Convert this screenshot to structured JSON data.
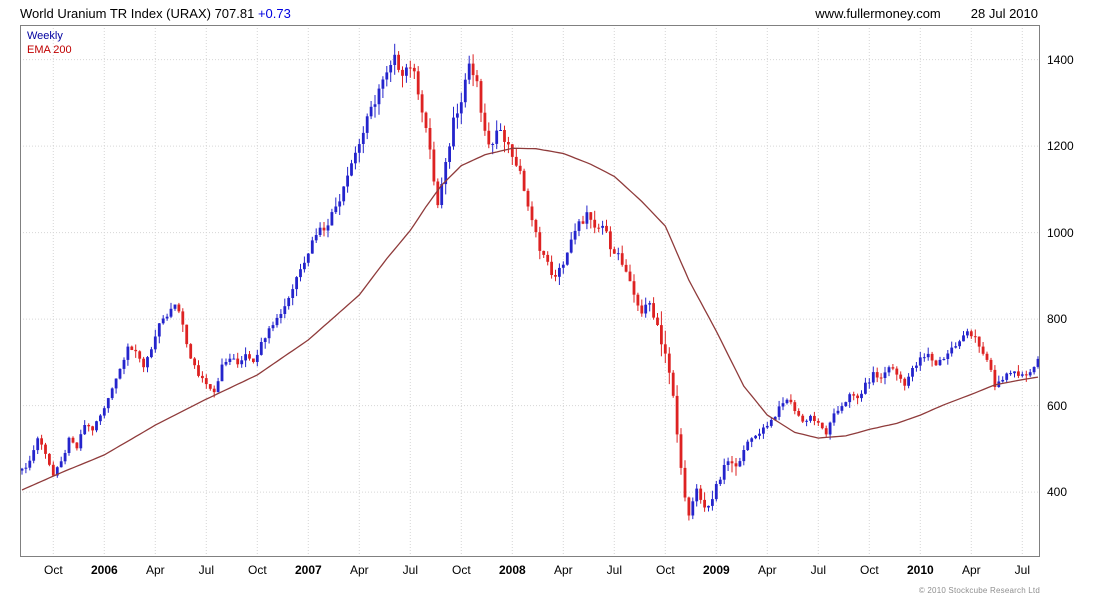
{
  "header": {
    "title": "World Uranium TR Index (URAX) 707.81",
    "change": "+0.73",
    "site": "www.fullermoney.com",
    "date": "28 Jul 2010"
  },
  "legend": {
    "weekly": "Weekly",
    "ema": "EMA 200"
  },
  "footer": {
    "copyright": "© 2010 Stockcube Research Ltd"
  },
  "colors": {
    "candle_up": "#2424cc",
    "candle_down": "#dd2222",
    "ema_line": "#8f3b3b",
    "legend_weekly": "#0000a0",
    "legend_ema": "#c00000",
    "change_positive": "#0000e0",
    "grid": "#d6d6d6",
    "border": "#808080"
  },
  "chart_data": {
    "type": "candlestick+line",
    "title": "World Uranium TR Index (URAX)",
    "frequency": "Weekly",
    "overlay": "EMA 200",
    "last_price": 707.81,
    "change": 0.73,
    "grid": true,
    "legend_position": "top-left",
    "xlabel": "",
    "ylabel": "",
    "ylim": [
      250,
      1480
    ],
    "y_ticks": [
      400,
      600,
      800,
      1000,
      1200,
      1400
    ],
    "weeks_total": 260,
    "x_ticks": [
      {
        "week": 8,
        "label": "Oct",
        "bold": false
      },
      {
        "week": 21,
        "label": "2006",
        "bold": true
      },
      {
        "week": 34,
        "label": "Apr",
        "bold": false
      },
      {
        "week": 47,
        "label": "Jul",
        "bold": false
      },
      {
        "week": 60,
        "label": "Oct",
        "bold": false
      },
      {
        "week": 73,
        "label": "2007",
        "bold": true
      },
      {
        "week": 86,
        "label": "Apr",
        "bold": false
      },
      {
        "week": 99,
        "label": "Jul",
        "bold": false
      },
      {
        "week": 112,
        "label": "Oct",
        "bold": false
      },
      {
        "week": 125,
        "label": "2008",
        "bold": true
      },
      {
        "week": 138,
        "label": "Apr",
        "bold": false
      },
      {
        "week": 151,
        "label": "Jul",
        "bold": false
      },
      {
        "week": 164,
        "label": "Oct",
        "bold": false
      },
      {
        "week": 177,
        "label": "2009",
        "bold": true
      },
      {
        "week": 190,
        "label": "Apr",
        "bold": false
      },
      {
        "week": 203,
        "label": "Jul",
        "bold": false
      },
      {
        "week": 216,
        "label": "Oct",
        "bold": false
      },
      {
        "week": 229,
        "label": "2010",
        "bold": true
      },
      {
        "week": 242,
        "label": "Apr",
        "bold": false
      },
      {
        "week": 255,
        "label": "Jul",
        "bold": false
      }
    ],
    "anchor_format": "[week_index, index_value] estimated weekly closes read from chart",
    "weekly_close_anchors": [
      [
        0,
        450
      ],
      [
        2,
        472
      ],
      [
        4,
        525
      ],
      [
        6,
        492
      ],
      [
        8,
        438
      ],
      [
        10,
        468
      ],
      [
        12,
        520
      ],
      [
        14,
        502
      ],
      [
        16,
        556
      ],
      [
        18,
        545
      ],
      [
        21,
        592
      ],
      [
        23,
        645
      ],
      [
        25,
        685
      ],
      [
        27,
        742
      ],
      [
        29,
        718
      ],
      [
        31,
        692
      ],
      [
        33,
        735
      ],
      [
        35,
        782
      ],
      [
        37,
        806
      ],
      [
        39,
        832
      ],
      [
        41,
        788
      ],
      [
        43,
        706
      ],
      [
        45,
        672
      ],
      [
        47,
        655
      ],
      [
        49,
        634
      ],
      [
        51,
        690
      ],
      [
        53,
        710
      ],
      [
        55,
        696
      ],
      [
        57,
        722
      ],
      [
        59,
        706
      ],
      [
        61,
        742
      ],
      [
        63,
        786
      ],
      [
        65,
        801
      ],
      [
        67,
        832
      ],
      [
        69,
        872
      ],
      [
        71,
        922
      ],
      [
        73,
        958
      ],
      [
        75,
        1002
      ],
      [
        77,
        1012
      ],
      [
        79,
        1042
      ],
      [
        81,
        1082
      ],
      [
        83,
        1142
      ],
      [
        85,
        1185
      ],
      [
        87,
        1232
      ],
      [
        89,
        1282
      ],
      [
        91,
        1332
      ],
      [
        93,
        1362
      ],
      [
        95,
        1398
      ],
      [
        97,
        1376
      ],
      [
        99,
        1388
      ],
      [
        101,
        1332
      ],
      [
        103,
        1242
      ],
      [
        105,
        1122
      ],
      [
        106,
        1062
      ],
      [
        108,
        1152
      ],
      [
        110,
        1262
      ],
      [
        112,
        1315
      ],
      [
        114,
        1392
      ],
      [
        116,
        1338
      ],
      [
        118,
        1222
      ],
      [
        120,
        1198
      ],
      [
        122,
        1248
      ],
      [
        124,
        1198
      ],
      [
        126,
        1162
      ],
      [
        128,
        1102
      ],
      [
        130,
        1022
      ],
      [
        132,
        968
      ],
      [
        134,
        926
      ],
      [
        136,
        892
      ],
      [
        138,
        932
      ],
      [
        140,
        978
      ],
      [
        142,
        1018
      ],
      [
        144,
        1042
      ],
      [
        146,
        1002
      ],
      [
        148,
        1016
      ],
      [
        150,
        972
      ],
      [
        152,
        948
      ],
      [
        154,
        902
      ],
      [
        156,
        856
      ],
      [
        158,
        816
      ],
      [
        160,
        836
      ],
      [
        162,
        786
      ],
      [
        164,
        722
      ],
      [
        166,
        615
      ],
      [
        168,
        452
      ],
      [
        170,
        342
      ],
      [
        172,
        402
      ],
      [
        174,
        362
      ],
      [
        176,
        386
      ],
      [
        178,
        432
      ],
      [
        180,
        472
      ],
      [
        182,
        452
      ],
      [
        184,
        502
      ],
      [
        186,
        522
      ],
      [
        189,
        548
      ],
      [
        191,
        566
      ],
      [
        193,
        592
      ],
      [
        195,
        616
      ],
      [
        197,
        592
      ],
      [
        199,
        562
      ],
      [
        201,
        576
      ],
      [
        203,
        556
      ],
      [
        205,
        536
      ],
      [
        207,
        576
      ],
      [
        209,
        602
      ],
      [
        211,
        622
      ],
      [
        213,
        616
      ],
      [
        215,
        646
      ],
      [
        217,
        672
      ],
      [
        219,
        662
      ],
      [
        221,
        692
      ],
      [
        223,
        672
      ],
      [
        225,
        652
      ],
      [
        227,
        682
      ],
      [
        229,
        706
      ],
      [
        231,
        716
      ],
      [
        233,
        696
      ],
      [
        235,
        712
      ],
      [
        237,
        732
      ],
      [
        239,
        746
      ],
      [
        241,
        772
      ],
      [
        243,
        762
      ],
      [
        245,
        716
      ],
      [
        247,
        682
      ],
      [
        248,
        642
      ],
      [
        250,
        662
      ],
      [
        252,
        682
      ],
      [
        254,
        662
      ],
      [
        256,
        672
      ],
      [
        258,
        692
      ],
      [
        259,
        708
      ]
    ],
    "ema_anchors": [
      [
        0,
        405
      ],
      [
        10,
        445
      ],
      [
        21,
        486
      ],
      [
        34,
        555
      ],
      [
        47,
        615
      ],
      [
        60,
        671
      ],
      [
        73,
        752
      ],
      [
        86,
        856
      ],
      [
        93,
        940
      ],
      [
        99,
        1005
      ],
      [
        103,
        1060
      ],
      [
        107,
        1110
      ],
      [
        112,
        1155
      ],
      [
        118,
        1180
      ],
      [
        125,
        1195
      ],
      [
        131,
        1194
      ],
      [
        138,
        1183
      ],
      [
        145,
        1158
      ],
      [
        151,
        1130
      ],
      [
        158,
        1072
      ],
      [
        164,
        1015
      ],
      [
        170,
        890
      ],
      [
        177,
        772
      ],
      [
        184,
        645
      ],
      [
        190,
        578
      ],
      [
        197,
        538
      ],
      [
        203,
        525
      ],
      [
        210,
        530
      ],
      [
        216,
        545
      ],
      [
        223,
        559
      ],
      [
        229,
        578
      ],
      [
        235,
        602
      ],
      [
        242,
        626
      ],
      [
        248,
        648
      ],
      [
        255,
        660
      ],
      [
        259,
        666
      ]
    ]
  }
}
